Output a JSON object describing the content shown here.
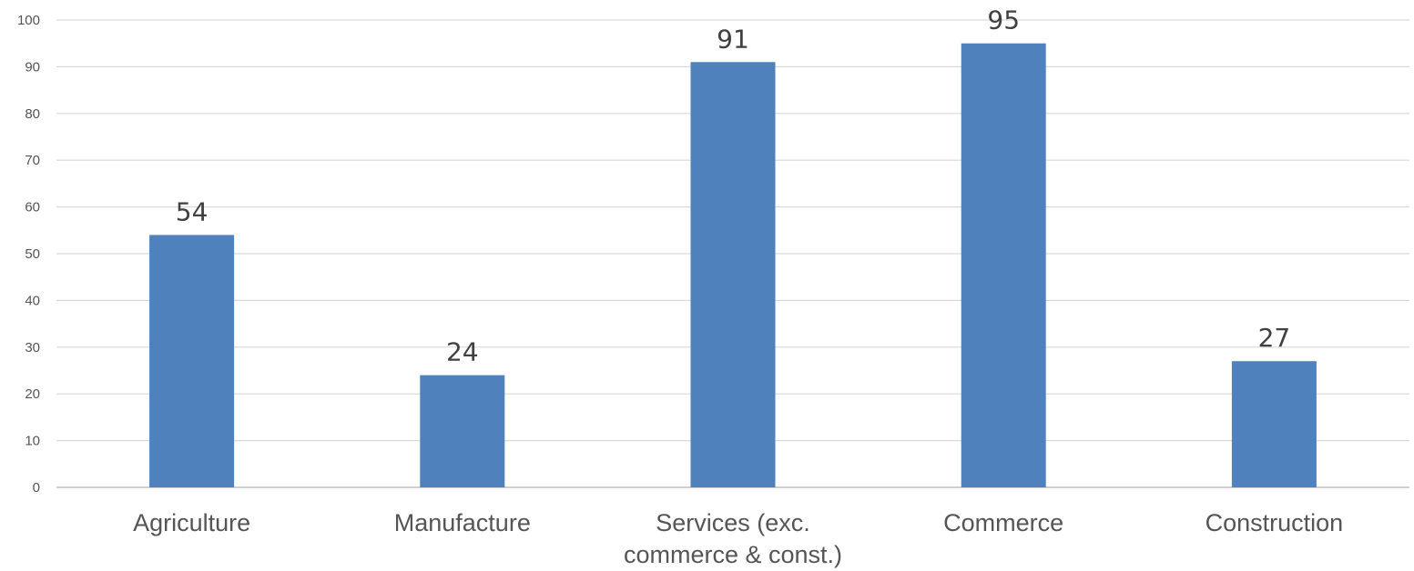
{
  "chart_data": {
    "type": "bar",
    "title": "",
    "xlabel": "",
    "ylabel": "",
    "categories": [
      [
        "Agriculture"
      ],
      [
        "Manufacture"
      ],
      [
        "Services (exc.",
        "commerce & const.)"
      ],
      [
        "Commerce"
      ],
      [
        "Construction"
      ]
    ],
    "values": [
      54,
      24,
      91,
      95,
      27
    ],
    "ylim": [
      0,
      100
    ],
    "yticks": [
      0,
      10,
      20,
      30,
      40,
      50,
      60,
      70,
      80,
      90,
      100
    ],
    "grid": true,
    "legend": "none",
    "bar_color": "#4f81bd"
  }
}
